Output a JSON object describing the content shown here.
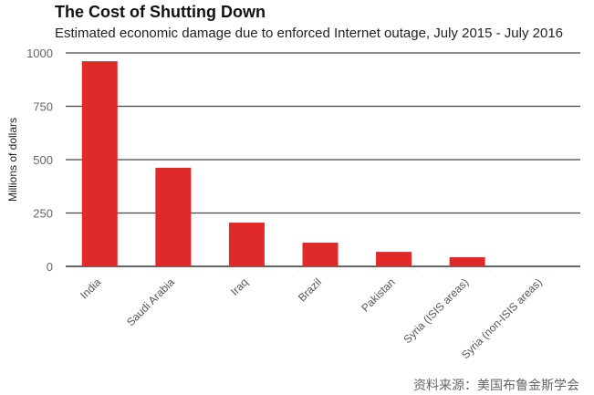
{
  "chart_data": {
    "type": "bar",
    "title": "The Cost of Shutting Down",
    "subtitle": "Estimated economic damage due to enforced Internet outage, July 2015 - July 2016",
    "xlabel": "",
    "ylabel": "Millions of dollars",
    "categories": [
      "India",
      "Saudi Arabia",
      "Iraq",
      "Brazil",
      "Pakistan",
      "Syria (ISIS areas)",
      "Syria (non-ISIS areas)"
    ],
    "values": [
      961,
      462,
      205,
      111,
      68,
      43,
      4
    ],
    "ylim": [
      0,
      1000
    ],
    "yticks": [
      0,
      250,
      500,
      750,
      1000
    ],
    "grid": true,
    "legend": "none",
    "bar_color": "#e02a2a",
    "source": "资料来源：美国布鲁金斯学会"
  }
}
